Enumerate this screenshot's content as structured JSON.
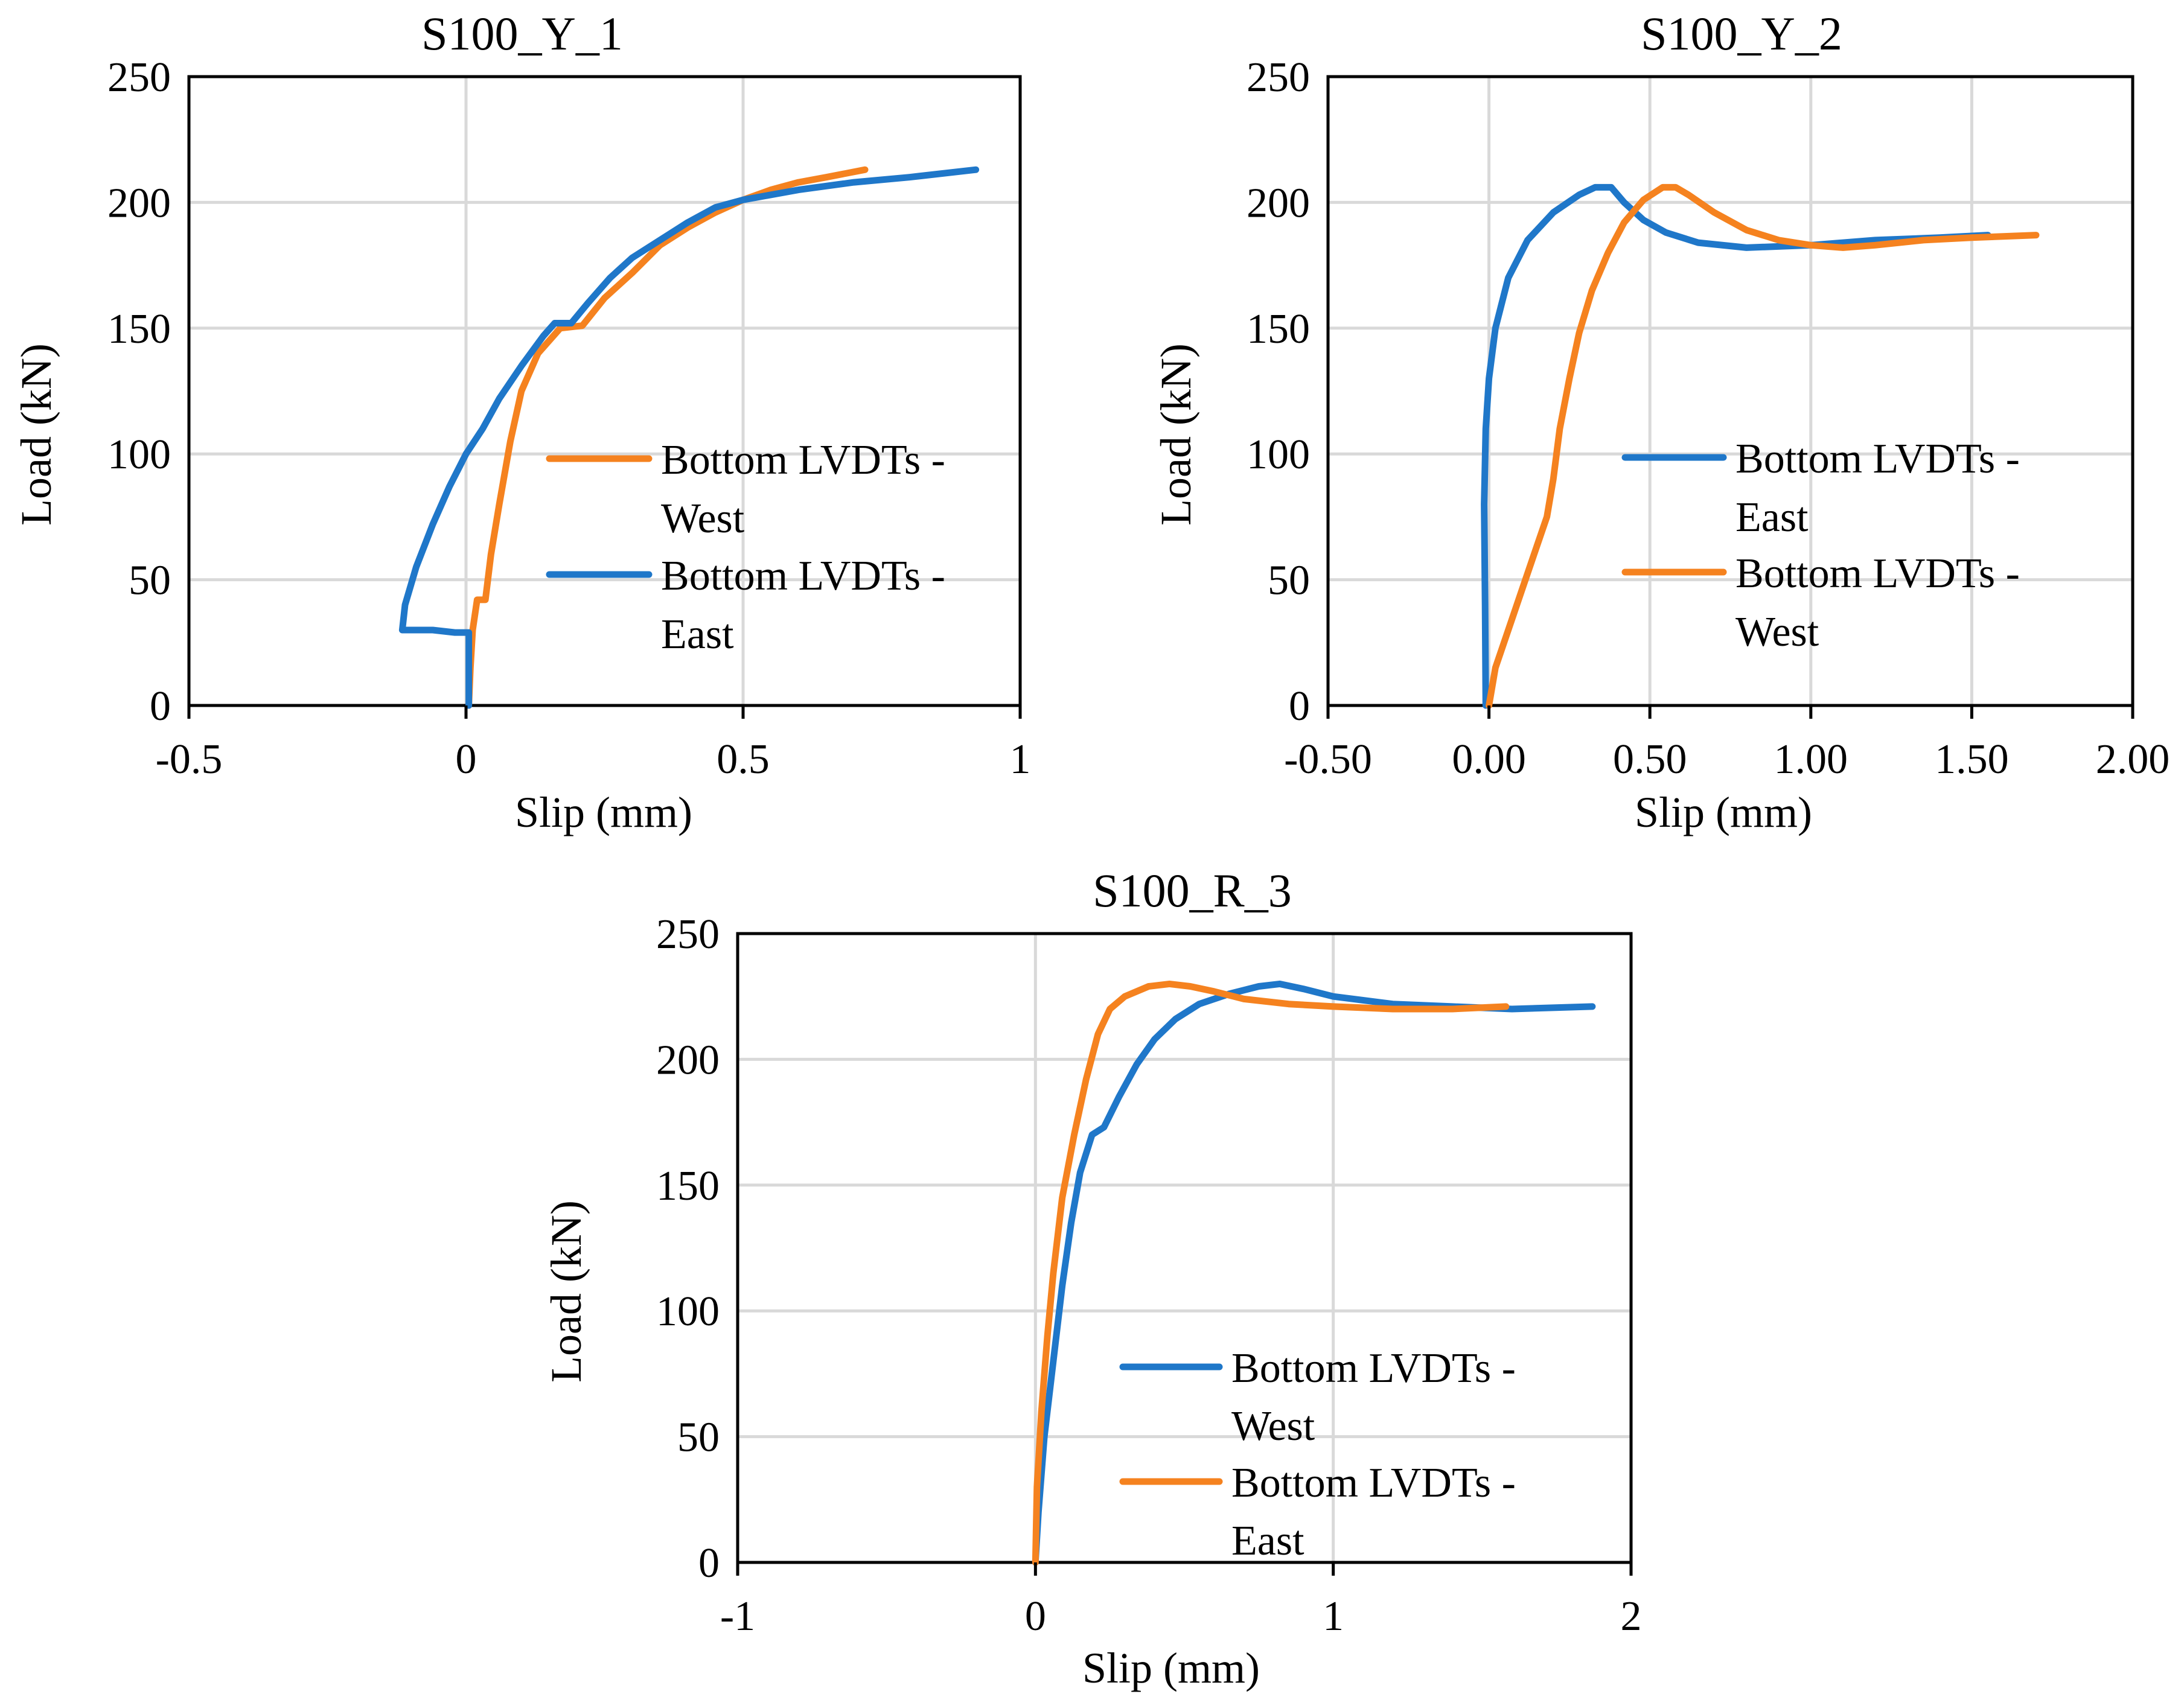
{
  "colors": {
    "blue": "#1f77c9",
    "orange": "#f5821f"
  },
  "chart_data": [
    {
      "type": "line",
      "title": "S100_Y_1",
      "xlabel": "Slip (mm)",
      "ylabel": "Load (kN)",
      "xlim": [
        -0.5,
        1
      ],
      "ylim": [
        0,
        250
      ],
      "xticks": [
        -0.5,
        0,
        0.5,
        1
      ],
      "xtick_labels": [
        "-0.5",
        "0",
        "0.5",
        "1"
      ],
      "yticks": [
        0,
        50,
        100,
        150,
        200,
        250
      ],
      "ytick_labels": [
        "0",
        "50",
        "100",
        "150",
        "200",
        "250"
      ],
      "grid": true,
      "legend_position": "middle-right",
      "series": [
        {
          "name": "Bottom LVDTs - West",
          "legend_lines": [
            "Bottom LVDTs -",
            "West"
          ],
          "color": "orange",
          "points": [
            [
              0.005,
              0
            ],
            [
              0.008,
              15
            ],
            [
              0.012,
              30
            ],
            [
              0.02,
              42
            ],
            [
              0.035,
              42
            ],
            [
              0.045,
              60
            ],
            [
              0.06,
              80
            ],
            [
              0.08,
              105
            ],
            [
              0.1,
              125
            ],
            [
              0.13,
              140
            ],
            [
              0.17,
              150
            ],
            [
              0.21,
              151
            ],
            [
              0.25,
              162
            ],
            [
              0.3,
              172
            ],
            [
              0.35,
              183
            ],
            [
              0.4,
              190
            ],
            [
              0.45,
              196
            ],
            [
              0.5,
              201
            ],
            [
              0.55,
              205
            ],
            [
              0.6,
              208
            ],
            [
              0.65,
              210
            ],
            [
              0.72,
              213
            ]
          ]
        },
        {
          "name": "Bottom LVDTs - East",
          "legend_lines": [
            "Bottom LVDTs -",
            "East"
          ],
          "color": "blue",
          "points": [
            [
              0.005,
              0
            ],
            [
              0.005,
              29
            ],
            [
              -0.02,
              29
            ],
            [
              -0.06,
              30
            ],
            [
              -0.115,
              30
            ],
            [
              -0.11,
              40
            ],
            [
              -0.09,
              55
            ],
            [
              -0.06,
              72
            ],
            [
              -0.03,
              87
            ],
            [
              0,
              100
            ],
            [
              0.03,
              110
            ],
            [
              0.06,
              122
            ],
            [
              0.1,
              135
            ],
            [
              0.14,
              147
            ],
            [
              0.16,
              152
            ],
            [
              0.19,
              152
            ],
            [
              0.22,
              160
            ],
            [
              0.26,
              170
            ],
            [
              0.3,
              178
            ],
            [
              0.35,
              185
            ],
            [
              0.4,
              192
            ],
            [
              0.45,
              198
            ],
            [
              0.5,
              201
            ],
            [
              0.6,
              205
            ],
            [
              0.7,
              208
            ],
            [
              0.8,
              210
            ],
            [
              0.92,
              213
            ]
          ]
        }
      ]
    },
    {
      "type": "line",
      "title": "S100_Y_2",
      "xlabel": "Slip (mm)",
      "ylabel": "Load (kN)",
      "xlim": [
        -0.5,
        2
      ],
      "ylim": [
        0,
        250
      ],
      "xticks": [
        -0.5,
        0,
        0.5,
        1,
        1.5,
        2
      ],
      "xtick_labels": [
        "-0.50",
        "0.00",
        "0.50",
        "1.00",
        "1.50",
        "2.00"
      ],
      "yticks": [
        0,
        50,
        100,
        150,
        200,
        250
      ],
      "ytick_labels": [
        "0",
        "50",
        "100",
        "150",
        "200",
        "250"
      ],
      "grid": true,
      "legend_position": "middle-right",
      "series": [
        {
          "name": "Bottom LVDTs - East",
          "legend_lines": [
            "Bottom LVDTs -",
            "East"
          ],
          "color": "blue",
          "points": [
            [
              -0.01,
              0
            ],
            [
              -0.012,
              40
            ],
            [
              -0.015,
              80
            ],
            [
              -0.01,
              110
            ],
            [
              0,
              130
            ],
            [
              0.02,
              150
            ],
            [
              0.06,
              170
            ],
            [
              0.12,
              185
            ],
            [
              0.2,
              196
            ],
            [
              0.28,
              203
            ],
            [
              0.33,
              206
            ],
            [
              0.38,
              206
            ],
            [
              0.42,
              200
            ],
            [
              0.48,
              193
            ],
            [
              0.55,
              188
            ],
            [
              0.65,
              184
            ],
            [
              0.8,
              182
            ],
            [
              1,
              183
            ],
            [
              1.2,
              185
            ],
            [
              1.4,
              186
            ],
            [
              1.55,
              187
            ]
          ]
        },
        {
          "name": "Bottom LVDTs - West",
          "legend_lines": [
            "Bottom LVDTs -",
            "West"
          ],
          "color": "orange",
          "points": [
            [
              0,
              0
            ],
            [
              0.02,
              15
            ],
            [
              0.06,
              30
            ],
            [
              0.1,
              45
            ],
            [
              0.14,
              60
            ],
            [
              0.18,
              75
            ],
            [
              0.2,
              90
            ],
            [
              0.22,
              110
            ],
            [
              0.25,
              130
            ],
            [
              0.28,
              148
            ],
            [
              0.32,
              165
            ],
            [
              0.37,
              180
            ],
            [
              0.42,
              192
            ],
            [
              0.48,
              201
            ],
            [
              0.54,
              206
            ],
            [
              0.58,
              206
            ],
            [
              0.62,
              203
            ],
            [
              0.7,
              196
            ],
            [
              0.8,
              189
            ],
            [
              0.9,
              185
            ],
            [
              1,
              183
            ],
            [
              1.1,
              182
            ],
            [
              1.2,
              183
            ],
            [
              1.35,
              185
            ],
            [
              1.5,
              186
            ],
            [
              1.7,
              187
            ]
          ]
        }
      ]
    },
    {
      "type": "line",
      "title": "S100_R_3",
      "xlabel": "Slip (mm)",
      "ylabel": "Load (kN)",
      "xlim": [
        -1,
        2
      ],
      "ylim": [
        0,
        250
      ],
      "xticks": [
        -1,
        0,
        1,
        2
      ],
      "xtick_labels": [
        "-1",
        "0",
        "1",
        "2"
      ],
      "yticks": [
        0,
        50,
        100,
        150,
        200,
        250
      ],
      "ytick_labels": [
        "0",
        "50",
        "100",
        "150",
        "200",
        "250"
      ],
      "grid": true,
      "legend_position": "bottom-right",
      "series": [
        {
          "name": "Bottom LVDTs - West",
          "legend_lines": [
            "Bottom LVDTs -",
            "West"
          ],
          "color": "blue",
          "points": [
            [
              0,
              0
            ],
            [
              0.01,
              20
            ],
            [
              0.03,
              50
            ],
            [
              0.06,
              80
            ],
            [
              0.09,
              110
            ],
            [
              0.12,
              135
            ],
            [
              0.15,
              155
            ],
            [
              0.19,
              170
            ],
            [
              0.23,
              173
            ],
            [
              0.28,
              185
            ],
            [
              0.34,
              198
            ],
            [
              0.4,
              208
            ],
            [
              0.47,
              216
            ],
            [
              0.55,
              222
            ],
            [
              0.65,
              226
            ],
            [
              0.75,
              229
            ],
            [
              0.82,
              230
            ],
            [
              0.9,
              228
            ],
            [
              1,
              225
            ],
            [
              1.2,
              222
            ],
            [
              1.4,
              221
            ],
            [
              1.6,
              220
            ],
            [
              1.87,
              221
            ]
          ]
        },
        {
          "name": "Bottom LVDTs - East",
          "legend_lines": [
            "Bottom LVDTs -",
            "East"
          ],
          "color": "orange",
          "points": [
            [
              0,
              0
            ],
            [
              0.005,
              30
            ],
            [
              0.02,
              60
            ],
            [
              0.04,
              90
            ],
            [
              0.06,
              115
            ],
            [
              0.09,
              145
            ],
            [
              0.13,
              170
            ],
            [
              0.17,
              192
            ],
            [
              0.21,
              210
            ],
            [
              0.25,
              220
            ],
            [
              0.3,
              225
            ],
            [
              0.38,
              229
            ],
            [
              0.45,
              230
            ],
            [
              0.52,
              229
            ],
            [
              0.6,
              227
            ],
            [
              0.7,
              224
            ],
            [
              0.85,
              222
            ],
            [
              1,
              221
            ],
            [
              1.2,
              220
            ],
            [
              1.4,
              220
            ],
            [
              1.58,
              221
            ]
          ]
        }
      ]
    }
  ]
}
